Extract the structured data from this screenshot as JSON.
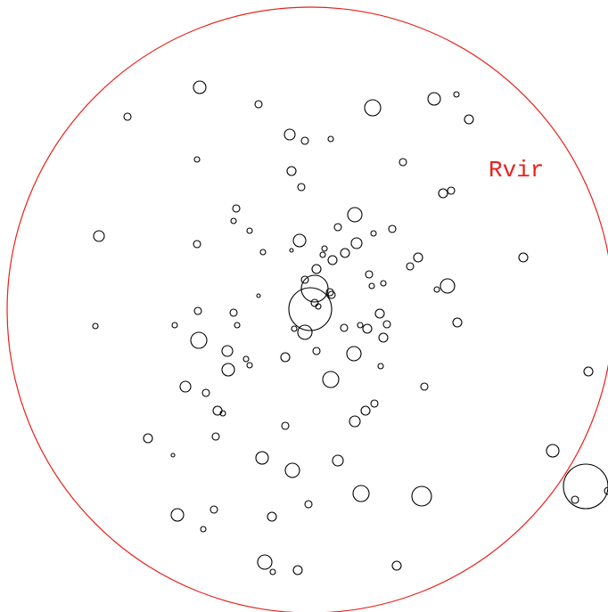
{
  "diagram": {
    "virial_label": "Rvir",
    "colors": {
      "virial_circle": "#e8221b",
      "subhalo_outline": "#000000",
      "background": "#ffffff"
    }
  }
}
